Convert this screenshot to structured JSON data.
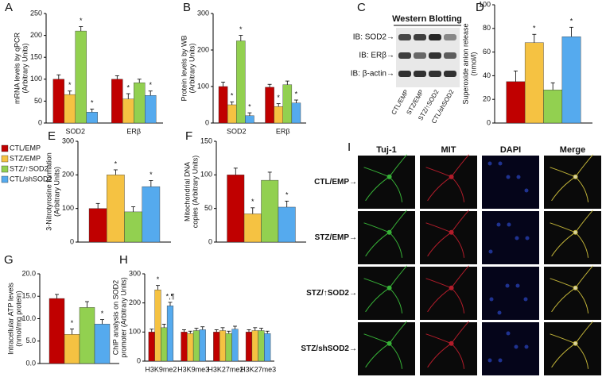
{
  "western_blot": {
    "panel": "C",
    "title": "Western Blotting",
    "rows": [
      "IB: SOD2→",
      "IB: ERβ→",
      "IB: β-actin→"
    ],
    "lanes": [
      "CTL/EMP",
      "STZ/EMP",
      "STZ/↑SOD2",
      "CTL/shSOD2"
    ]
  },
  "microscopy": {
    "panel": "I",
    "columns": [
      "Tuj-1",
      "MIT",
      "DAPI",
      "Merge"
    ],
    "rows": [
      "CTL/EMP→",
      "STZ/EMP→",
      "STZ/↑SOD2→",
      "STZ/shSOD2→"
    ]
  },
  "chart_data": [
    {
      "type": "bar",
      "panel": "A",
      "y_label": [
        "mRNA levels by qPCR",
        "(Arbitrary Units)"
      ],
      "categories": [
        "SOD2",
        "ERβ"
      ],
      "series": [
        {
          "name": "CTL/EMP",
          "color": "#c00000",
          "values": [
            100,
            100
          ],
          "errors": [
            10,
            8
          ],
          "significance": [
            null,
            null
          ]
        },
        {
          "name": "STZ/EMP",
          "color": "#f5c242",
          "values": [
            65,
            55
          ],
          "errors": [
            8,
            12
          ],
          "significance": [
            "*",
            "*"
          ]
        },
        {
          "name": "STZ/↑SOD2",
          "color": "#92d050",
          "values": [
            210,
            92
          ],
          "errors": [
            10,
            8
          ],
          "significance": [
            "*",
            null
          ]
        },
        {
          "name": "CTL/shSOD2",
          "color": "#55aaee",
          "values": [
            25,
            63
          ],
          "errors": [
            7,
            10
          ],
          "significance": [
            "*",
            "*"
          ]
        }
      ],
      "ylim": [
        0,
        250
      ],
      "yticks": [
        0,
        50,
        100,
        150,
        200,
        250
      ]
    },
    {
      "type": "bar",
      "panel": "B",
      "y_label": [
        "Protein levels by WB",
        "(Arbitrary Units)"
      ],
      "categories": [
        "SOD2",
        "ERβ"
      ],
      "series": [
        {
          "color": "#c00000",
          "values": [
            100,
            98
          ],
          "errors": [
            12,
            8
          ],
          "significance": [
            null,
            null
          ]
        },
        {
          "color": "#f5c242",
          "values": [
            50,
            45
          ],
          "errors": [
            8,
            8
          ],
          "significance": [
            "*",
            "*"
          ]
        },
        {
          "color": "#92d050",
          "values": [
            225,
            105
          ],
          "errors": [
            15,
            10
          ],
          "significance": [
            "*",
            null
          ]
        },
        {
          "color": "#55aaee",
          "values": [
            20,
            55
          ],
          "errors": [
            8,
            8
          ],
          "significance": [
            "*",
            "*"
          ]
        }
      ],
      "ylim": [
        0,
        300
      ],
      "yticks": [
        0,
        100,
        200,
        300
      ]
    },
    {
      "type": "bar",
      "panel": "D",
      "y_label": [
        "Superoxide anion release",
        "(nmol/l)"
      ],
      "categories": [
        null
      ],
      "series": [
        {
          "color": "#c00000",
          "values": [
            35
          ],
          "errors": [
            9
          ],
          "significance": [
            null
          ]
        },
        {
          "color": "#f5c242",
          "values": [
            68
          ],
          "errors": [
            7
          ],
          "significance": [
            "*"
          ]
        },
        {
          "color": "#92d050",
          "values": [
            28
          ],
          "errors": [
            6
          ],
          "significance": [
            null
          ]
        },
        {
          "color": "#55aaee",
          "values": [
            73
          ],
          "errors": [
            8
          ],
          "significance": [
            "*"
          ]
        }
      ],
      "ylim": [
        0,
        100
      ],
      "yticks": [
        0,
        20,
        40,
        60,
        80,
        100
      ]
    },
    {
      "type": "bar",
      "panel": "E",
      "y_label": [
        "3-Nitrotyrosine formation",
        "(Arbitrary Units)"
      ],
      "categories": [
        null
      ],
      "series": [
        {
          "color": "#c00000",
          "values": [
            100
          ],
          "errors": [
            15
          ],
          "significance": [
            null
          ]
        },
        {
          "color": "#f5c242",
          "values": [
            200
          ],
          "errors": [
            15
          ],
          "significance": [
            "*"
          ]
        },
        {
          "color": "#92d050",
          "values": [
            90
          ],
          "errors": [
            15
          ],
          "significance": [
            null
          ]
        },
        {
          "color": "#55aaee",
          "values": [
            165
          ],
          "errors": [
            18
          ],
          "significance": [
            "*"
          ]
        }
      ],
      "ylim": [
        0,
        300
      ],
      "yticks": [
        0,
        100,
        200,
        300
      ]
    },
    {
      "type": "bar",
      "panel": "F",
      "y_label": [
        "Mitochondrial DNA",
        "copies (Arbitrary Units)"
      ],
      "categories": [
        null
      ],
      "series": [
        {
          "color": "#c00000",
          "values": [
            100
          ],
          "errors": [
            10
          ],
          "significance": [
            null
          ]
        },
        {
          "color": "#f5c242",
          "values": [
            42
          ],
          "errors": [
            9
          ],
          "significance": [
            "*"
          ]
        },
        {
          "color": "#92d050",
          "values": [
            92
          ],
          "errors": [
            12
          ],
          "significance": [
            null
          ]
        },
        {
          "color": "#55aaee",
          "values": [
            52
          ],
          "errors": [
            9
          ],
          "significance": [
            "*"
          ]
        }
      ],
      "ylim": [
        0,
        150
      ],
      "yticks": [
        0,
        50,
        100,
        150
      ]
    },
    {
      "type": "bar",
      "panel": "G",
      "y_label": [
        "Intracellular ATP levels",
        "(nmol/mg protein)"
      ],
      "categories": [
        null
      ],
      "series": [
        {
          "color": "#c00000",
          "values": [
            14.5
          ],
          "errors": [
            0.9
          ],
          "significance": [
            null
          ]
        },
        {
          "color": "#f5c242",
          "values": [
            6.5
          ],
          "errors": [
            1.2
          ],
          "significance": [
            "*"
          ]
        },
        {
          "color": "#92d050",
          "values": [
            12.5
          ],
          "errors": [
            1.3
          ],
          "significance": [
            null
          ]
        },
        {
          "color": "#55aaee",
          "values": [
            8.8
          ],
          "errors": [
            1.0
          ],
          "significance": [
            "*"
          ]
        }
      ],
      "ylim": [
        0,
        20
      ],
      "yticks": [
        {
          "value": 0,
          "label": "0.0"
        },
        {
          "value": 5,
          "label": "5.0"
        },
        {
          "value": 10,
          "label": "10.0"
        },
        {
          "value": 15,
          "label": "15.0"
        },
        {
          "value": 20,
          "label": "20.0"
        }
      ]
    },
    {
      "type": "bar",
      "panel": "H",
      "y_label": [
        "ChIP analysis on SOD2",
        "promoter (Arbitrary Units)"
      ],
      "categories": [
        "H3K9me2",
        "H3K9me3",
        "H3K27me2",
        "H3K27me3"
      ],
      "series": [
        {
          "color": "#c00000",
          "values": [
            100,
            100,
            100,
            100
          ],
          "errors": [
            10,
            8,
            8,
            8
          ],
          "significance": [
            null,
            null,
            null,
            null
          ]
        },
        {
          "color": "#f5c242",
          "values": [
            245,
            95,
            105,
            105
          ],
          "errors": [
            15,
            8,
            10,
            10
          ],
          "significance": [
            "*",
            null,
            null,
            null
          ]
        },
        {
          "color": "#92d050",
          "values": [
            115,
            105,
            95,
            105
          ],
          "errors": [
            12,
            8,
            8,
            8
          ],
          "significance": [
            null,
            null,
            null,
            null
          ]
        },
        {
          "color": "#55aaee",
          "values": [
            190,
            108,
            110,
            95
          ],
          "errors": [
            12,
            10,
            10,
            8
          ],
          "significance": [
            "*,¶",
            null,
            null,
            null
          ]
        }
      ],
      "ylim": [
        0,
        300
      ],
      "yticks": [
        0,
        100,
        200,
        300
      ]
    }
  ]
}
